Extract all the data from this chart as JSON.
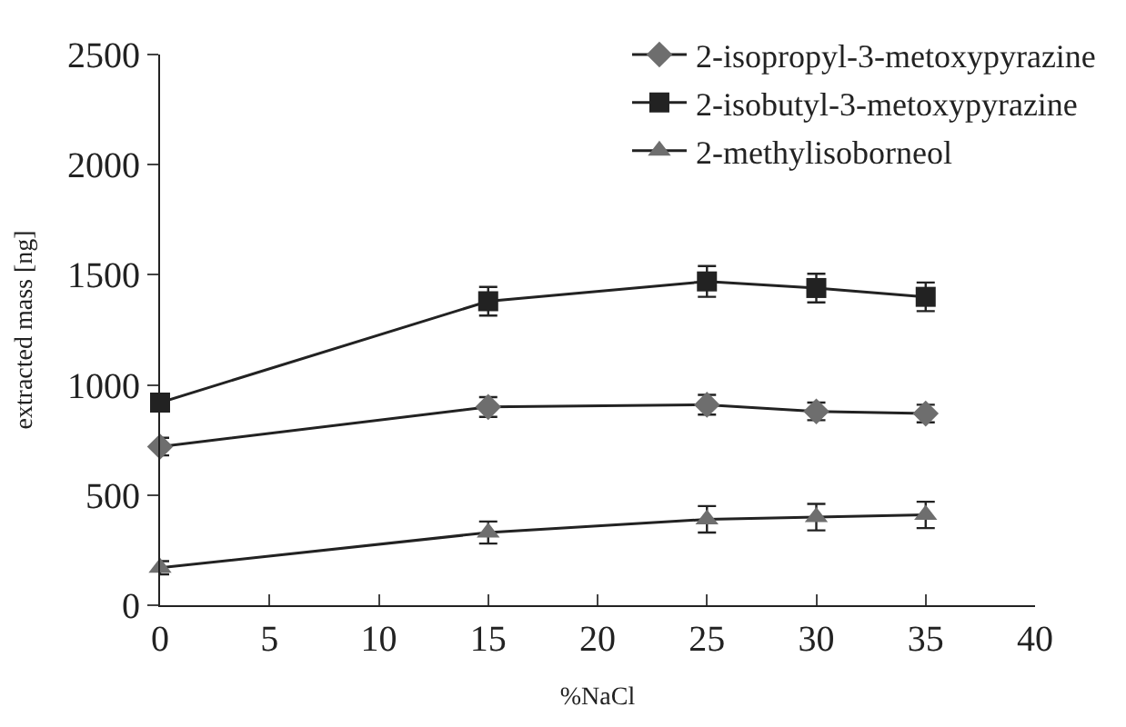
{
  "chart_data": {
    "type": "line",
    "xlabel": "%NaCl",
    "ylabel": "extracted mass [ng]",
    "x": [
      0,
      15,
      25,
      30,
      35
    ],
    "series": [
      {
        "name": "2-isopropyl-3-metoxypyrazine",
        "color": "#6e6e6e",
        "marker": "diamond",
        "values": [
          720,
          900,
          910,
          880,
          870
        ],
        "errors": [
          40,
          45,
          45,
          40,
          40
        ]
      },
      {
        "name": "2-isobutyl-3-metoxypyrazine",
        "color": "#222222",
        "marker": "square",
        "values": [
          920,
          1380,
          1470,
          1440,
          1400
        ],
        "errors": [
          null,
          65,
          70,
          65,
          65
        ]
      },
      {
        "name": "2-methylisoborneol",
        "color": "#6e6e6e",
        "marker": "triangle",
        "values": [
          170,
          330,
          390,
          400,
          410
        ],
        "errors": [
          30,
          50,
          60,
          60,
          60
        ]
      }
    ],
    "xlim": [
      0,
      40
    ],
    "xticks": [
      0,
      5,
      10,
      15,
      20,
      25,
      30,
      35,
      40
    ],
    "ylim": [
      0,
      2500
    ],
    "yticks": [
      0,
      500,
      1000,
      1500,
      2000,
      2500
    ],
    "legend": "top right",
    "line_style": "solid"
  }
}
